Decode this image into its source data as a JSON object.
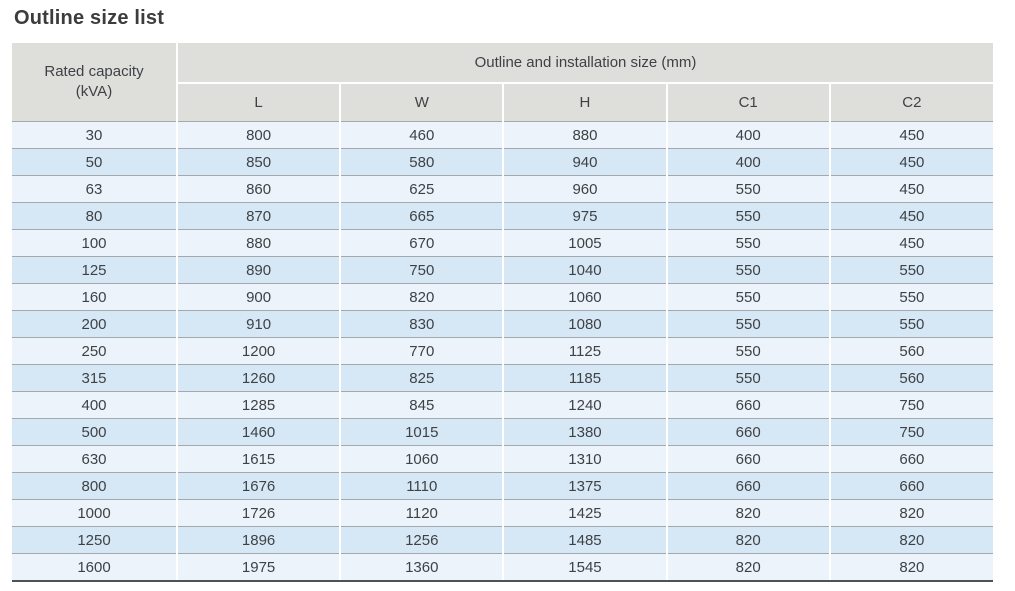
{
  "page": {
    "title": "Outline size list"
  },
  "table": {
    "header": {
      "capacity_label": "Rated capacity\n(kVA)",
      "group_label": "Outline and installation size (mm)",
      "columns": [
        "L",
        "W",
        "H",
        "C1",
        "C2"
      ]
    },
    "rows": [
      {
        "capacity": "30",
        "values": [
          "800",
          "460",
          "880",
          "400",
          "450"
        ]
      },
      {
        "capacity": "50",
        "values": [
          "850",
          "580",
          "940",
          "400",
          "450"
        ]
      },
      {
        "capacity": "63",
        "values": [
          "860",
          "625",
          "960",
          "550",
          "450"
        ]
      },
      {
        "capacity": "80",
        "values": [
          "870",
          "665",
          "975",
          "550",
          "450"
        ]
      },
      {
        "capacity": "100",
        "values": [
          "880",
          "670",
          "1005",
          "550",
          "450"
        ]
      },
      {
        "capacity": "125",
        "values": [
          "890",
          "750",
          "1040",
          "550",
          "550"
        ]
      },
      {
        "capacity": "160",
        "values": [
          "900",
          "820",
          "1060",
          "550",
          "550"
        ]
      },
      {
        "capacity": "200",
        "values": [
          "910",
          "830",
          "1080",
          "550",
          "550"
        ]
      },
      {
        "capacity": "250",
        "values": [
          "1200",
          "770",
          "1125",
          "550",
          "560"
        ]
      },
      {
        "capacity": "315",
        "values": [
          "1260",
          "825",
          "1185",
          "550",
          "560"
        ]
      },
      {
        "capacity": "400",
        "values": [
          "1285",
          "845",
          "1240",
          "660",
          "750"
        ]
      },
      {
        "capacity": "500",
        "values": [
          "1460",
          "1015",
          "1380",
          "660",
          "750"
        ]
      },
      {
        "capacity": "630",
        "values": [
          "1615",
          "1060",
          "1310",
          "660",
          "660"
        ]
      },
      {
        "capacity": "800",
        "values": [
          "1676",
          "1110",
          "1375",
          "660",
          "660"
        ]
      },
      {
        "capacity": "1000",
        "values": [
          "1726",
          "1120",
          "1425",
          "820",
          "820"
        ]
      },
      {
        "capacity": "1250",
        "values": [
          "1896",
          "1256",
          "1485",
          "820",
          "820"
        ]
      },
      {
        "capacity": "1600",
        "values": [
          "1975",
          "1360",
          "1545",
          "820",
          "820"
        ]
      }
    ]
  },
  "colors": {
    "header_background": "#dededb",
    "row_light": "#ecf3fa",
    "row_dark": "#d6e8f6",
    "row_divider": "#a4a9ad",
    "bottom_border": "#4e5254",
    "text": "#3f4245",
    "title_text": "#3c3c3c"
  }
}
